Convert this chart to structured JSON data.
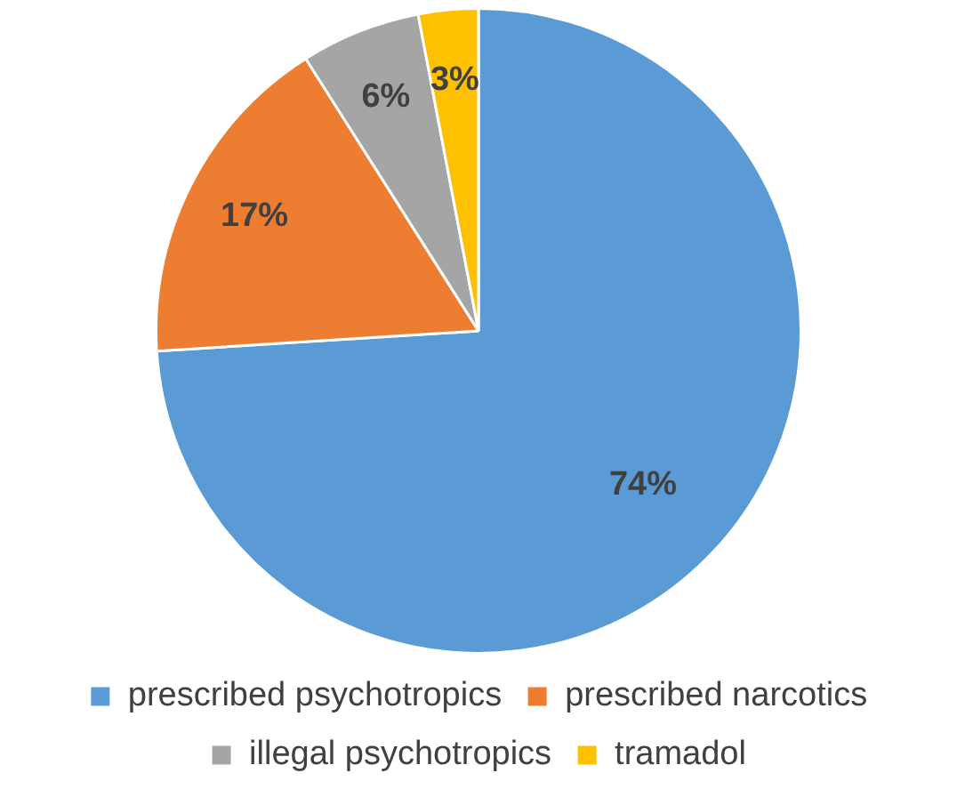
{
  "chart_data": {
    "type": "pie",
    "categories": [
      "prescribed psychotropics",
      "prescribed narcotics",
      "illegal psychotropics",
      "tramadol"
    ],
    "values": [
      74,
      17,
      6,
      3
    ],
    "colors": [
      "#5b9bd5",
      "#ed7d31",
      "#a5a5a5",
      "#ffc000"
    ],
    "value_labels": [
      "74%",
      "17%",
      "6%",
      "3%"
    ],
    "legend": "bottom"
  }
}
